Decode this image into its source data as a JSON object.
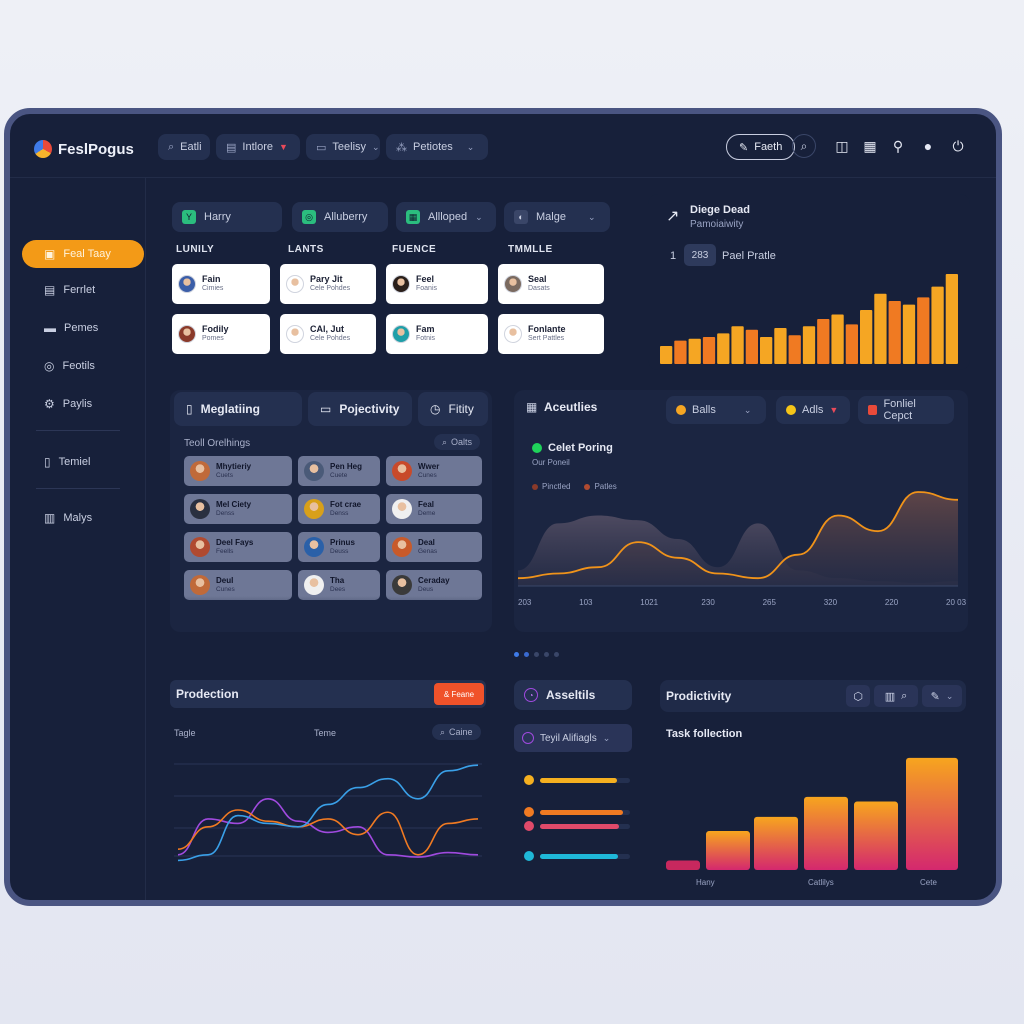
{
  "app": {
    "name": "FeslPogus"
  },
  "topbar": {
    "search_label": "Eatli",
    "menu1": "Intlore",
    "menu2": "Teelisy",
    "menu3": "Petiotes",
    "action_button": "Faeth"
  },
  "sidebar": {
    "items": [
      {
        "label": "Feal Taay",
        "icon": "calendar-icon"
      },
      {
        "label": "Ferrlet",
        "icon": "document-icon"
      },
      {
        "label": "Pemes",
        "icon": "print-icon"
      },
      {
        "label": "Feotils",
        "icon": "clock-icon"
      },
      {
        "label": "Paylis",
        "icon": "settings-icon"
      },
      {
        "label": "Temiel",
        "icon": "file-icon"
      },
      {
        "label": "Malys",
        "icon": "chart-icon"
      }
    ]
  },
  "filters": [
    {
      "label": "Harry",
      "color": "#2bbd7e",
      "glyph": "Y"
    },
    {
      "label": "Alluberry",
      "color": "#2bbd7e",
      "glyph": "◎"
    },
    {
      "label": "Allloped",
      "color": "#2bbd7e",
      "glyph": "▦"
    },
    {
      "label": "Malge",
      "color": "#9aa4c4",
      "glyph": "◐"
    }
  ],
  "columns": [
    "LUNILY",
    "LANTS",
    "FUENCE",
    "TMMLLE"
  ],
  "people_cards": [
    {
      "name": "Fain",
      "sub": "Cimies",
      "avatar": "#3b5ea8"
    },
    {
      "name": "Pary Jit",
      "sub": "Cele Pohdes",
      "avatar": "#ffffff"
    },
    {
      "name": "Feel",
      "sub": "Foanis",
      "avatar": "#2a1f1a"
    },
    {
      "name": "Seal",
      "sub": "Dasats",
      "avatar": "#7a6a60"
    },
    {
      "name": "Fodily",
      "sub": "Pomes",
      "avatar": "#8a3a2a"
    },
    {
      "name": "CAl, Jut",
      "sub": "Cele Pohdes",
      "avatar": "#ffffff"
    },
    {
      "name": "Fam",
      "sub": "Fotnis",
      "avatar": "#1f9fa8"
    },
    {
      "name": "Fonlante",
      "sub": "Sert Pattles",
      "avatar": "#ffffff"
    }
  ],
  "top_chart": {
    "title": "Diege Dead",
    "subtitle": "Pamoiaiwity",
    "counter_prefix": "1",
    "counter": "283",
    "counter_label": "Pael Pratle",
    "chart_data": {
      "type": "bar",
      "values": [
        20,
        26,
        28,
        30,
        34,
        42,
        38,
        30,
        40,
        32,
        42,
        50,
        55,
        44,
        60,
        78,
        70,
        66,
        74,
        86,
        100
      ]
    },
    "colors": [
      "#f5a623",
      "#f07a22",
      "#f5a623",
      "#f07a22",
      "#f5a623",
      "#f5a623",
      "#f07a22",
      "#f5a623",
      "#f5a623",
      "#f07a22",
      "#f5a623",
      "#f07a22",
      "#f5a623",
      "#f07a22",
      "#f5a623",
      "#f5a623",
      "#f07a22",
      "#f5a623",
      "#f07a22",
      "#f5a623",
      "#f5a623"
    ]
  },
  "mid_left": {
    "tabs": [
      {
        "label": "Meglatiing",
        "icon": "doc-icon"
      },
      {
        "label": "Pojectivity",
        "icon": "folder-icon"
      },
      {
        "label": "Fitity",
        "icon": "clock-icon"
      }
    ],
    "section_label": "Teoll Orelhings",
    "section_action": "Oalts",
    "cards": [
      {
        "name": "Mhytieriy",
        "sub": "Cuets",
        "avatar": "#c06a3a"
      },
      {
        "name": "Pen Heg",
        "sub": "Cuete",
        "avatar": "#4a5a78"
      },
      {
        "name": "Wwer",
        "sub": "Cunes",
        "avatar": "#c84a2a"
      },
      {
        "name": "Mel Ciety",
        "sub": "Denss",
        "avatar": "#2a3040"
      },
      {
        "name": "Fot crae",
        "sub": "Denss",
        "avatar": "#d8a01a"
      },
      {
        "name": "Feal",
        "sub": "Deme",
        "avatar": "#f0f0f0"
      },
      {
        "name": "Deel Fays",
        "sub": "Feells",
        "avatar": "#b04a30"
      },
      {
        "name": "Prinus",
        "sub": "Deuss",
        "avatar": "#2a60a8"
      },
      {
        "name": "Deal",
        "sub": "Genas",
        "avatar": "#c85a2a"
      },
      {
        "name": "Deul",
        "sub": "Cunes",
        "avatar": "#c06a3a"
      },
      {
        "name": "Tha",
        "sub": "Dees",
        "avatar": "#f0f0f0"
      },
      {
        "name": "Ceraday",
        "sub": "Deus",
        "avatar": "#3a3a3a"
      }
    ]
  },
  "activities": {
    "title": "Aceutlies",
    "dropdown1": "Balls",
    "dropdown2": "Adls",
    "dropdown3": "Fonliel Cepct",
    "legend_title": "Celet Poring",
    "legend_sub": "Our Poneil",
    "legend_items": [
      "Pinctled",
      "Patles"
    ],
    "x_labels": [
      "203",
      "103",
      "1021",
      "230",
      "265",
      "320",
      "220",
      "20 03"
    ],
    "chart_data": {
      "type": "area",
      "series": [
        {
          "values": [
            10,
            40,
            45,
            42,
            30,
            12,
            40,
            10,
            5,
            3,
            2,
            3
          ]
        },
        {
          "values": [
            5,
            8,
            12,
            28,
            18,
            8,
            5,
            20,
            45,
            35,
            60,
            55
          ]
        }
      ]
    }
  },
  "pager": {
    "active": 0,
    "count": 5
  },
  "production": {
    "title": "Prodection",
    "button": "& Feane",
    "label_left": "Tagle",
    "label_mid": "Teme",
    "action": "Caine",
    "chart_data": {
      "type": "line",
      "series": [
        {
          "color": "#a04adf",
          "values": [
            10,
            42,
            38,
            60,
            40,
            30,
            35,
            10,
            8,
            12,
            10
          ]
        },
        {
          "color": "#f07a22",
          "values": [
            15,
            35,
            50,
            40,
            35,
            42,
            28,
            48,
            10,
            38,
            42
          ]
        },
        {
          "color": "#3aa0e8",
          "values": [
            5,
            10,
            45,
            38,
            35,
            55,
            70,
            78,
            60,
            85,
            90
          ]
        }
      ]
    }
  },
  "assets": {
    "title": "Asseltils",
    "dropdown": "Teyil Alifiagls",
    "bars": [
      {
        "color": "#f5b020",
        "value": 0.85,
        "dot": "#f5b020"
      },
      {
        "color": "#f07a22",
        "value": 0.92,
        "dot": "#f07a22"
      },
      {
        "color": "#e04a6a",
        "value": 0.88,
        "dot": "#e04a6a"
      },
      {
        "color": "#1fb8d8",
        "value": 0.87,
        "dot": "#1fb8d8"
      }
    ]
  },
  "productivity": {
    "title": "Prodictivity",
    "subtitle": "Task follection",
    "x_labels": [
      "Hany",
      "Catlilys",
      "Cete"
    ],
    "chart_data": {
      "type": "bar",
      "values": [
        8,
        33,
        45,
        62,
        58,
        95
      ]
    }
  }
}
